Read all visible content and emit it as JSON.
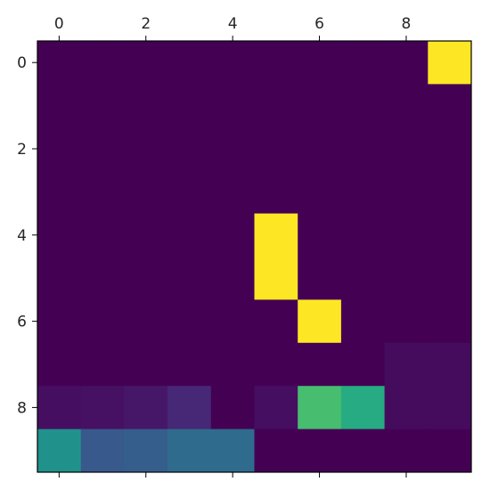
{
  "chart_data": {
    "type": "heatmap",
    "title": "",
    "xlabel": "",
    "ylabel": "",
    "x_ticks": [
      "0",
      "2",
      "4",
      "6",
      "8"
    ],
    "y_ticks": [
      "0",
      "2",
      "4",
      "6",
      "8"
    ],
    "x_tick_positions": [
      0,
      2,
      4,
      6,
      8
    ],
    "y_tick_positions": [
      0,
      2,
      4,
      6,
      8
    ],
    "rows": 10,
    "cols": 10,
    "colormap": "viridis",
    "vmin": 0,
    "vmax": 1,
    "values": [
      [
        0,
        0,
        0,
        0,
        0,
        0,
        0,
        0,
        0,
        1
      ],
      [
        0,
        0,
        0,
        0,
        0,
        0,
        0,
        0,
        0,
        0
      ],
      [
        0,
        0,
        0,
        0,
        0,
        0,
        0,
        0,
        0,
        0
      ],
      [
        0,
        0,
        0,
        0,
        0,
        0,
        0,
        0,
        0,
        0
      ],
      [
        0,
        0,
        0,
        0,
        0,
        1,
        0,
        0,
        0,
        0
      ],
      [
        0,
        0,
        0,
        0,
        0,
        1,
        0,
        0,
        0,
        0
      ],
      [
        0,
        0,
        0,
        0,
        0,
        0,
        1,
        0,
        0,
        0
      ],
      [
        0,
        0,
        0,
        0,
        0,
        0,
        0,
        0,
        0.04,
        0.04
      ],
      [
        0.05,
        0.06,
        0.08,
        0.14,
        0,
        0.05,
        0.7,
        0.62,
        0.04,
        0.04
      ],
      [
        0.5,
        0.28,
        0.3,
        0.35,
        0.35,
        0,
        0,
        0,
        0,
        0
      ]
    ],
    "grid": false,
    "legend": "none"
  }
}
